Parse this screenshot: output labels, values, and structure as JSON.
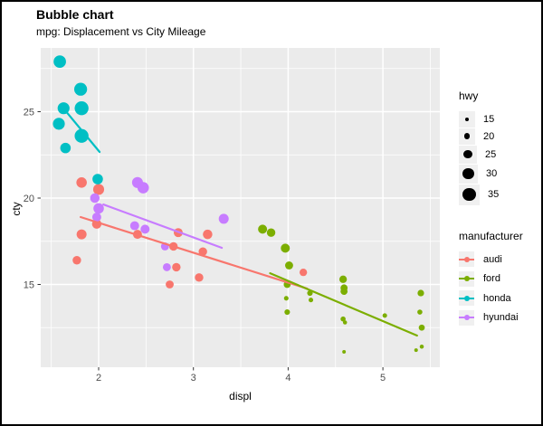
{
  "window": {
    "bg": "#ffffff",
    "border_color": "#000000"
  },
  "header": {
    "title": "Bubble chart",
    "subtitle": "mpg: Displacement vs City Mileage"
  },
  "axes": {
    "x_label": "displ",
    "y_label": "cty"
  },
  "legends": {
    "size": {
      "title": "hwy",
      "items": [
        {
          "label": "15",
          "value": 15
        },
        {
          "label": "20",
          "value": 20
        },
        {
          "label": "25",
          "value": 25
        },
        {
          "label": "30",
          "value": 30
        },
        {
          "label": "35",
          "value": 35
        }
      ]
    },
    "color": {
      "title": "manufacturer",
      "items": [
        {
          "label": "audi",
          "color": "#F8766D"
        },
        {
          "label": "ford",
          "color": "#7CAE00"
        },
        {
          "label": "honda",
          "color": "#00BFC4"
        },
        {
          "label": "hyundai",
          "color": "#C77CFF"
        }
      ]
    }
  },
  "chart_data": {
    "type": "scatter",
    "title": "Bubble chart",
    "subtitle": "mpg: Displacement vs City Mileage",
    "xlabel": "displ",
    "ylabel": "cty",
    "xlim": [
      1.39,
      5.6
    ],
    "ylim": [
      10.2,
      28.7
    ],
    "x_major_ticks": [
      2,
      3,
      4,
      5
    ],
    "y_major_ticks": [
      15,
      20,
      25
    ],
    "x_minor_ticks": [
      1.5,
      2.5,
      3.5,
      4.5,
      5.5
    ],
    "y_minor_ticks": [
      12.5,
      17.5,
      22.5,
      27.5
    ],
    "grid": "white major+minor gridlines on gray panel",
    "panel_bg": "#EBEBEB",
    "grid_color": "#FFFFFF",
    "legend_position": "right",
    "size_variable": "hwy",
    "size_legend_values": [
      15,
      20,
      25,
      30,
      35
    ],
    "point_format": "[displ, cty, hwy]",
    "series": [
      {
        "name": "audi",
        "color": "#F8766D",
        "points": [
          [
            1.82,
            20.9,
            29
          ],
          [
            2.0,
            20.5,
            30
          ],
          [
            1.98,
            18.5,
            27
          ],
          [
            1.82,
            17.9,
            28
          ],
          [
            2.41,
            17.9,
            26
          ],
          [
            1.77,
            16.4,
            25
          ],
          [
            2.84,
            18.0,
            26
          ],
          [
            3.15,
            17.9,
            27
          ],
          [
            2.79,
            17.2,
            25
          ],
          [
            3.1,
            16.9,
            25
          ],
          [
            2.82,
            16.0,
            25
          ],
          [
            2.75,
            15.0,
            24
          ],
          [
            3.06,
            15.4,
            25
          ],
          [
            4.16,
            15.7,
            23
          ]
        ],
        "trend": [
          [
            1.81,
            18.9
          ],
          [
            4.2,
            14.76
          ]
        ]
      },
      {
        "name": "ford",
        "color": "#7CAE00",
        "points": [
          [
            3.73,
            18.2,
            26
          ],
          [
            3.82,
            18.0,
            25
          ],
          [
            3.97,
            17.1,
            26
          ],
          [
            4.01,
            16.1,
            24
          ],
          [
            3.99,
            15.0,
            22
          ],
          [
            3.98,
            14.2,
            17
          ],
          [
            3.99,
            13.4,
            19
          ],
          [
            4.23,
            14.5,
            19
          ],
          [
            4.24,
            14.1,
            17
          ],
          [
            4.58,
            15.3,
            23
          ],
          [
            4.59,
            14.8,
            22
          ],
          [
            4.59,
            14.6,
            22
          ],
          [
            4.58,
            13.0,
            18
          ],
          [
            4.6,
            12.8,
            16
          ],
          [
            5.02,
            13.2,
            17
          ],
          [
            5.4,
            14.5,
            21
          ],
          [
            5.39,
            13.4,
            18
          ],
          [
            5.41,
            12.5,
            20
          ],
          [
            5.35,
            11.2,
            15
          ],
          [
            5.41,
            11.4,
            16
          ],
          [
            4.59,
            11.1,
            15
          ]
        ],
        "trend": [
          [
            3.81,
            15.65
          ],
          [
            5.36,
            12.04
          ]
        ]
      },
      {
        "name": "honda",
        "color": "#00BFC4",
        "points": [
          [
            1.59,
            27.9,
            33
          ],
          [
            1.81,
            26.3,
            34
          ],
          [
            1.63,
            25.2,
            32
          ],
          [
            1.82,
            25.2,
            36
          ],
          [
            1.58,
            24.3,
            32
          ],
          [
            1.82,
            23.6,
            36
          ],
          [
            1.65,
            22.9,
            29
          ],
          [
            1.99,
            21.1,
            29
          ]
        ],
        "trend": [
          [
            1.67,
            24.92
          ],
          [
            2.01,
            22.67
          ]
        ]
      },
      {
        "name": "hyundai",
        "color": "#C77CFF",
        "points": [
          [
            2.41,
            20.9,
            30
          ],
          [
            2.47,
            20.6,
            31
          ],
          [
            1.96,
            20.0,
            27
          ],
          [
            2.0,
            19.4,
            29
          ],
          [
            1.98,
            18.9,
            26
          ],
          [
            2.38,
            18.4,
            26
          ],
          [
            2.49,
            18.2,
            26
          ],
          [
            2.7,
            17.2,
            24
          ],
          [
            2.72,
            16.0,
            24
          ],
          [
            3.32,
            18.8,
            28
          ]
        ],
        "trend": [
          [
            2.05,
            19.63
          ],
          [
            3.3,
            17.12
          ]
        ]
      }
    ]
  }
}
